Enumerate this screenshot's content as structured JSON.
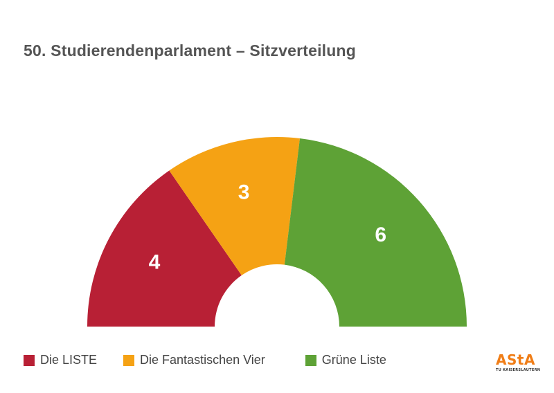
{
  "title": "50. Studierendenparlament – Sitzverteilung",
  "chart_data": {
    "type": "pie",
    "subtype": "semicircle-donut",
    "title": "50. Studierendenparlament – Sitzverteilung",
    "series": [
      {
        "name": "Die LISTE",
        "value": 4,
        "color": "#b82035"
      },
      {
        "name": "Die Fantastischen Vier",
        "value": 3,
        "color": "#f5a214"
      },
      {
        "name": "Grüne Liste",
        "value": 6,
        "color": "#5ea236"
      }
    ],
    "legend_position": "bottom"
  },
  "logo": {
    "text": "AStA",
    "subtext": "TU KAISERSLAUTERN"
  }
}
